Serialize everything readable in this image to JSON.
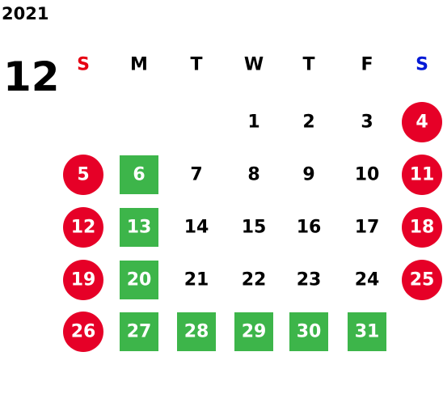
{
  "year": "2021",
  "month": "12",
  "weekdays": [
    {
      "label": "S",
      "color": "#e60012"
    },
    {
      "label": "M",
      "color": "#000000"
    },
    {
      "label": "T",
      "color": "#000000"
    },
    {
      "label": "W",
      "color": "#000000"
    },
    {
      "label": "T",
      "color": "#000000"
    },
    {
      "label": "F",
      "color": "#000000"
    },
    {
      "label": "S",
      "color": "#0019d6"
    }
  ],
  "weeks": [
    [
      null,
      null,
      null,
      {
        "day": "1"
      },
      {
        "day": "2"
      },
      {
        "day": "3"
      },
      {
        "day": "4",
        "shape": "circle",
        "color": "#e60027"
      }
    ],
    [
      {
        "day": "5",
        "shape": "circle",
        "color": "#e60027"
      },
      {
        "day": "6",
        "shape": "square",
        "color": "#3db54a"
      },
      {
        "day": "7"
      },
      {
        "day": "8"
      },
      {
        "day": "9"
      },
      {
        "day": "10"
      },
      {
        "day": "11",
        "shape": "circle",
        "color": "#e60027"
      }
    ],
    [
      {
        "day": "12",
        "shape": "circle",
        "color": "#e60027"
      },
      {
        "day": "13",
        "shape": "square",
        "color": "#3db54a"
      },
      {
        "day": "14"
      },
      {
        "day": "15"
      },
      {
        "day": "16"
      },
      {
        "day": "17"
      },
      {
        "day": "18",
        "shape": "circle",
        "color": "#e60027"
      }
    ],
    [
      {
        "day": "19",
        "shape": "circle",
        "color": "#e60027"
      },
      {
        "day": "20",
        "shape": "square",
        "color": "#3db54a"
      },
      {
        "day": "21"
      },
      {
        "day": "22"
      },
      {
        "day": "23"
      },
      {
        "day": "24"
      },
      {
        "day": "25",
        "shape": "circle",
        "color": "#e60027"
      }
    ],
    [
      {
        "day": "26",
        "shape": "circle",
        "color": "#e60027"
      },
      {
        "day": "27",
        "shape": "square",
        "color": "#3db54a"
      },
      {
        "day": "28",
        "shape": "square",
        "color": "#3db54a"
      },
      {
        "day": "29",
        "shape": "square",
        "color": "#3db54a"
      },
      {
        "day": "30",
        "shape": "square",
        "color": "#3db54a"
      },
      {
        "day": "31",
        "shape": "square",
        "color": "#3db54a"
      },
      null
    ]
  ]
}
